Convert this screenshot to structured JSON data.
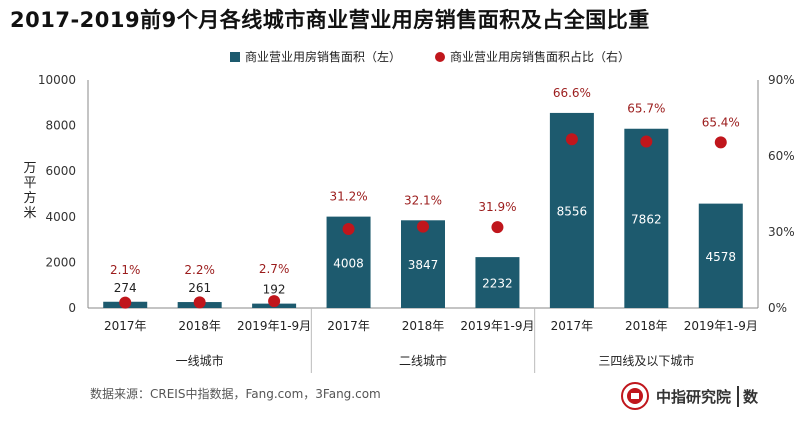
{
  "title": "2017-2019前9个月各线城市商业营业用房销售面积及占全国比重",
  "source": "数据来源：CREIS中指数据，Fang.com，3Fang.com",
  "logo": {
    "name": "中指研究院",
    "suffix": "数"
  },
  "colors": {
    "bar": "#1d5a6e",
    "dot": "#c0161c",
    "pct_label": "#9b1c1c",
    "axis": "#888888"
  },
  "chart_data": {
    "type": "bar",
    "ylabel": "万平方米",
    "ylim": [
      0,
      10000
    ],
    "yticks": [
      "0",
      "2000",
      "4000",
      "6000",
      "8000",
      "10000"
    ],
    "y2lim": [
      0,
      90
    ],
    "y2ticks": [
      "0%",
      "30%",
      "60%",
      "90%"
    ],
    "legend_position": "top",
    "groups": [
      {
        "name": "一线城市",
        "categories": [
          "2017年",
          "2018年",
          "2019年1-9月"
        ]
      },
      {
        "name": "二线城市",
        "categories": [
          "2017年",
          "2018年",
          "2019年1-9月"
        ]
      },
      {
        "name": "三四线及以下城市",
        "categories": [
          "2017年",
          "2018年",
          "2019年1-9月"
        ]
      }
    ],
    "series": [
      {
        "name": "商业营业用房销售面积（左）",
        "type": "bar",
        "axis": "left",
        "values": [
          274,
          261,
          192,
          4008,
          3847,
          2232,
          8556,
          7862,
          4578
        ],
        "labels": [
          "274",
          "261",
          "192",
          "4008",
          "3847",
          "2232",
          "8556",
          "7862",
          "4578"
        ]
      },
      {
        "name": "商业营业用房销售面积占比（右）",
        "type": "scatter",
        "axis": "right",
        "values": [
          2.1,
          2.2,
          2.7,
          31.2,
          32.1,
          31.9,
          66.6,
          65.7,
          65.4
        ],
        "labels": [
          "2.1%",
          "2.2%",
          "2.7%",
          "31.2%",
          "32.1%",
          "31.9%",
          "66.6%",
          "65.7%",
          "65.4%"
        ]
      }
    ]
  }
}
